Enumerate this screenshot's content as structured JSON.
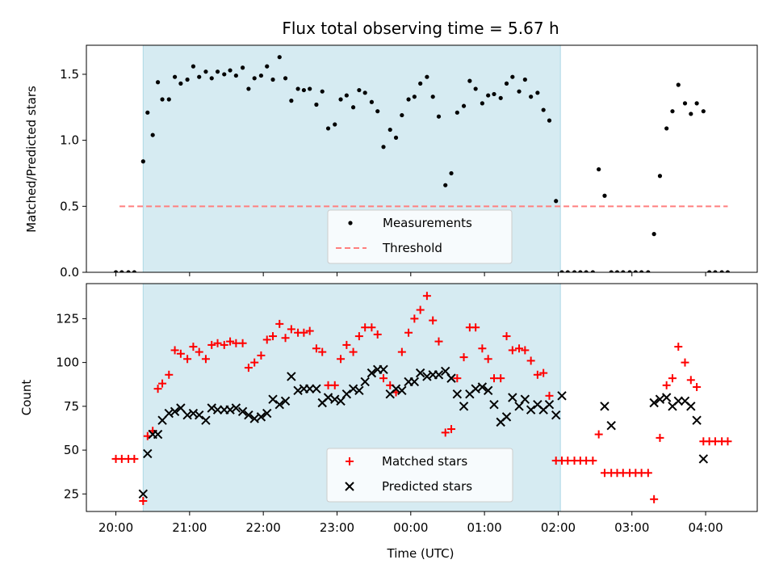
{
  "chart_data": [
    {
      "type": "scatter",
      "title": "Flux total observing time = 5.67 h",
      "xlabel": "",
      "ylabel": "Matched/Predicted stars",
      "ylim": [
        0,
        1.72
      ],
      "yticks": [
        0.0,
        0.5,
        1.0,
        1.5
      ],
      "ytick_labels": [
        "0.0",
        "0.5",
        "1.0",
        "1.5"
      ],
      "xlim_hours": [
        19.6,
        28.7
      ],
      "shaded_span_hours": [
        20.37,
        26.03
      ],
      "shade_color": "#add8e6",
      "legend_position": "lower center",
      "series": [
        {
          "name": "Measurements",
          "marker": "dot",
          "color": "#000000",
          "x": [
            20.0,
            20.08,
            20.17,
            20.25,
            20.37,
            20.43,
            20.5,
            20.57,
            20.63,
            20.72,
            20.8,
            20.88,
            20.97,
            21.05,
            21.13,
            21.22,
            21.3,
            21.38,
            21.47,
            21.55,
            21.63,
            21.72,
            21.8,
            21.88,
            21.97,
            22.05,
            22.13,
            22.22,
            22.3,
            22.38,
            22.47,
            22.55,
            22.63,
            22.72,
            22.8,
            22.88,
            22.97,
            23.05,
            23.13,
            23.22,
            23.3,
            23.38,
            23.47,
            23.55,
            23.63,
            23.72,
            23.8,
            23.88,
            23.97,
            24.05,
            24.13,
            24.22,
            24.3,
            24.38,
            24.47,
            24.55,
            24.63,
            24.72,
            24.8,
            24.88,
            24.97,
            25.05,
            25.13,
            25.22,
            25.3,
            25.38,
            25.47,
            25.55,
            25.63,
            25.72,
            25.8,
            25.88,
            25.97,
            26.05,
            26.13,
            26.22,
            26.3,
            26.38,
            26.47,
            26.55,
            26.63,
            26.72,
            26.8,
            26.88,
            26.97,
            27.05,
            27.13,
            27.22,
            27.3,
            27.38,
            27.47,
            27.55,
            27.63,
            27.72,
            27.8,
            27.88,
            27.97,
            28.05,
            28.13,
            28.22,
            28.3
          ],
          "y": [
            0.0,
            0.0,
            0.0,
            0.0,
            0.84,
            1.21,
            1.04,
            1.44,
            1.31,
            1.31,
            1.48,
            1.43,
            1.46,
            1.56,
            1.48,
            1.52,
            1.47,
            1.52,
            1.5,
            1.53,
            1.49,
            1.55,
            1.39,
            1.47,
            1.49,
            1.56,
            1.46,
            1.63,
            1.47,
            1.3,
            1.39,
            1.38,
            1.39,
            1.27,
            1.37,
            1.09,
            1.12,
            1.31,
            1.34,
            1.25,
            1.38,
            1.36,
            1.29,
            1.22,
            0.95,
            1.08,
            1.02,
            1.19,
            1.31,
            1.33,
            1.43,
            1.48,
            1.33,
            1.18,
            0.66,
            0.75,
            1.21,
            1.26,
            1.45,
            1.39,
            1.28,
            1.34,
            1.35,
            1.32,
            1.43,
            1.48,
            1.37,
            1.46,
            1.33,
            1.36,
            1.23,
            1.15,
            0.54,
            0.0,
            0.0,
            0.0,
            0.0,
            0.0,
            0.0,
            0.78,
            0.58,
            0.0,
            0.0,
            0.0,
            0.0,
            0.0,
            0.0,
            0.0,
            0.29,
            0.73,
            1.09,
            1.22,
            1.42,
            1.28,
            1.2,
            1.28,
            1.22,
            0.0,
            0.0,
            0.0,
            0.0
          ]
        },
        {
          "name": "Threshold",
          "marker": "dashed-line",
          "color": "#ff7f7f",
          "x": [
            20.05,
            28.3
          ],
          "y": [
            0.5,
            0.5
          ]
        }
      ]
    },
    {
      "type": "scatter",
      "title": "",
      "xlabel": "Time (UTC)",
      "ylabel": "Count",
      "ylim": [
        15,
        145
      ],
      "yticks": [
        25,
        50,
        75,
        100,
        125
      ],
      "ytick_labels": [
        "25",
        "50",
        "75",
        "100",
        "125"
      ],
      "xlim_hours": [
        19.6,
        28.7
      ],
      "xticks_hours": [
        20,
        21,
        22,
        23,
        24,
        25,
        26,
        27,
        28
      ],
      "xtick_labels": [
        "20:00",
        "21:00",
        "22:00",
        "23:00",
        "00:00",
        "01:00",
        "02:00",
        "03:00",
        "04:00"
      ],
      "shaded_span_hours": [
        20.37,
        26.03
      ],
      "shade_color": "#add8e6",
      "legend_position": "lower center",
      "series": [
        {
          "name": "Matched stars",
          "marker": "plus",
          "color": "#ff0000",
          "x": [
            20.0,
            20.08,
            20.17,
            20.25,
            20.37,
            20.43,
            20.5,
            20.57,
            20.63,
            20.72,
            20.8,
            20.88,
            20.97,
            21.05,
            21.13,
            21.22,
            21.3,
            21.38,
            21.47,
            21.55,
            21.63,
            21.72,
            21.8,
            21.88,
            21.97,
            22.05,
            22.13,
            22.22,
            22.3,
            22.38,
            22.47,
            22.55,
            22.63,
            22.72,
            22.8,
            22.88,
            22.97,
            23.05,
            23.13,
            23.22,
            23.3,
            23.38,
            23.47,
            23.55,
            23.63,
            23.72,
            23.8,
            23.88,
            23.97,
            24.05,
            24.13,
            24.22,
            24.3,
            24.38,
            24.47,
            24.55,
            24.63,
            24.72,
            24.8,
            24.88,
            24.97,
            25.05,
            25.13,
            25.22,
            25.3,
            25.38,
            25.47,
            25.55,
            25.63,
            25.72,
            25.8,
            25.88,
            25.97,
            26.05,
            26.13,
            26.22,
            26.3,
            26.38,
            26.47,
            26.55,
            26.63,
            26.72,
            26.8,
            26.88,
            26.97,
            27.05,
            27.13,
            27.22,
            27.3,
            27.38,
            27.47,
            27.55,
            27.63,
            27.72,
            27.8,
            27.88,
            27.97,
            28.05,
            28.13,
            28.22,
            28.3
          ],
          "y": [
            45,
            45,
            45,
            45,
            21,
            58,
            61,
            85,
            88,
            93,
            107,
            105,
            102,
            109,
            106,
            102,
            110,
            111,
            110,
            112,
            111,
            111,
            97,
            100,
            104,
            113,
            115,
            122,
            114,
            119,
            117,
            117,
            118,
            108,
            106,
            87,
            87,
            102,
            110,
            106,
            115,
            120,
            120,
            116,
            91,
            87,
            83,
            106,
            117,
            125,
            130,
            138,
            124,
            112,
            60,
            62,
            91,
            103,
            120,
            120,
            108,
            102,
            91,
            91,
            115,
            107,
            108,
            107,
            101,
            93,
            94,
            81,
            44,
            44,
            44,
            44,
            44,
            44,
            44,
            59,
            37,
            37,
            37,
            37,
            37,
            37,
            37,
            37,
            22,
            57,
            87,
            91,
            109,
            100,
            90,
            86,
            55,
            55,
            55,
            55,
            55
          ]
        },
        {
          "name": "Predicted stars",
          "marker": "x",
          "color": "#000000",
          "x": [
            20.37,
            20.43,
            20.5,
            20.57,
            20.63,
            20.72,
            20.8,
            20.88,
            20.97,
            21.05,
            21.13,
            21.22,
            21.3,
            21.38,
            21.47,
            21.55,
            21.63,
            21.72,
            21.8,
            21.88,
            21.97,
            22.05,
            22.13,
            22.22,
            22.3,
            22.38,
            22.47,
            22.55,
            22.63,
            22.72,
            22.8,
            22.88,
            22.97,
            23.05,
            23.13,
            23.22,
            23.3,
            23.38,
            23.47,
            23.55,
            23.63,
            23.72,
            23.8,
            23.88,
            23.97,
            24.05,
            24.13,
            24.22,
            24.3,
            24.38,
            24.47,
            24.55,
            24.63,
            24.72,
            24.8,
            24.88,
            24.97,
            25.05,
            25.13,
            25.22,
            25.3,
            25.38,
            25.47,
            25.55,
            25.63,
            25.72,
            25.8,
            25.88,
            25.97,
            26.05,
            26.63,
            26.72,
            27.3,
            27.38,
            27.47,
            27.55,
            27.63,
            27.72,
            27.8,
            27.88,
            27.97
          ],
          "y": [
            25,
            48,
            59,
            59,
            67,
            71,
            72,
            74,
            70,
            71,
            70,
            67,
            74,
            73,
            73,
            73,
            74,
            72,
            70,
            68,
            69,
            71,
            79,
            76,
            78,
            92,
            84,
            85,
            85,
            85,
            77,
            80,
            79,
            78,
            82,
            85,
            84,
            89,
            94,
            96,
            96,
            82,
            85,
            84,
            89,
            89,
            94,
            92,
            93,
            93,
            95,
            91,
            82,
            75,
            82,
            85,
            86,
            84,
            76,
            66,
            69,
            80,
            75,
            79,
            73,
            76,
            73,
            76,
            70,
            81,
            75,
            64,
            77,
            79,
            80,
            75,
            78,
            78,
            75,
            67,
            45
          ]
        }
      ]
    }
  ]
}
